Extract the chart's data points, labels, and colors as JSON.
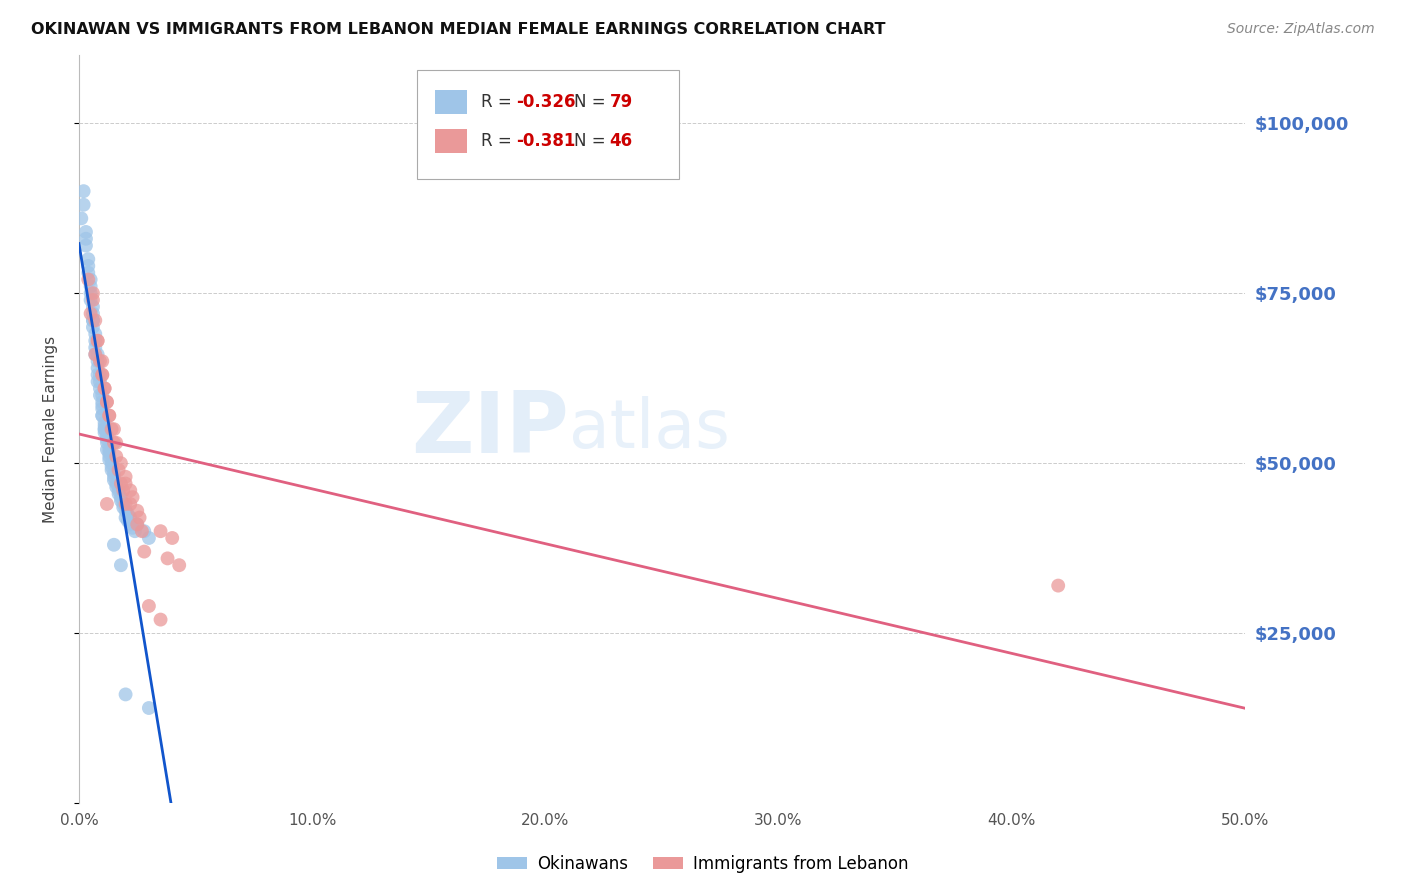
{
  "title": "OKINAWAN VS IMMIGRANTS FROM LEBANON MEDIAN FEMALE EARNINGS CORRELATION CHART",
  "source": "Source: ZipAtlas.com",
  "ylabel": "Median Female Earnings",
  "xlim": [
    0.0,
    0.5
  ],
  "ylim": [
    0,
    110000
  ],
  "yticks": [
    0,
    25000,
    50000,
    75000,
    100000
  ],
  "ytick_labels": [
    "",
    "$25,000",
    "$50,000",
    "$75,000",
    "$100,000"
  ],
  "xtick_labels": [
    "0.0%",
    "10.0%",
    "20.0%",
    "30.0%",
    "40.0%",
    "50.0%"
  ],
  "xticks": [
    0.0,
    0.1,
    0.2,
    0.3,
    0.4,
    0.5
  ],
  "r_okinawan": -0.326,
  "n_okinawan": 79,
  "r_lebanon": -0.381,
  "n_lebanon": 46,
  "blue_color": "#9fc5e8",
  "pink_color": "#ea9999",
  "blue_line_color": "#1155cc",
  "pink_line_color": "#e06080",
  "right_tick_color": "#4472c4",
  "okinawan_x": [
    0.002,
    0.003,
    0.004,
    0.005,
    0.005,
    0.006,
    0.006,
    0.007,
    0.007,
    0.008,
    0.008,
    0.009,
    0.009,
    0.01,
    0.01,
    0.01,
    0.011,
    0.011,
    0.012,
    0.012,
    0.013,
    0.013,
    0.014,
    0.014,
    0.015,
    0.015,
    0.016,
    0.017,
    0.018,
    0.019,
    0.02,
    0.021,
    0.022,
    0.025,
    0.028,
    0.03,
    0.003,
    0.004,
    0.005,
    0.006,
    0.006,
    0.007,
    0.008,
    0.008,
    0.009,
    0.01,
    0.01,
    0.011,
    0.011,
    0.012,
    0.013,
    0.013,
    0.014,
    0.015,
    0.016,
    0.017,
    0.018,
    0.019,
    0.02,
    0.021,
    0.022,
    0.023,
    0.024,
    0.001,
    0.002,
    0.003,
    0.004,
    0.005,
    0.006,
    0.007,
    0.008,
    0.009,
    0.01,
    0.011,
    0.012,
    0.015,
    0.018,
    0.02,
    0.03
  ],
  "okinawan_y": [
    90000,
    84000,
    80000,
    77000,
    74000,
    72000,
    70000,
    68000,
    67000,
    66000,
    64000,
    63000,
    61000,
    60000,
    59000,
    57000,
    56000,
    55000,
    54000,
    53000,
    52000,
    51000,
    50000,
    49000,
    48500,
    48000,
    47000,
    46000,
    45000,
    44000,
    43000,
    42500,
    42000,
    41000,
    40000,
    39000,
    82000,
    78000,
    75000,
    73000,
    71000,
    69000,
    65000,
    63000,
    62000,
    58000,
    57000,
    55500,
    54500,
    53500,
    51500,
    50500,
    49500,
    47500,
    46500,
    45500,
    44500,
    43500,
    42000,
    41500,
    41000,
    40500,
    40000,
    86000,
    88000,
    83000,
    79000,
    76000,
    71000,
    66000,
    62000,
    60000,
    58500,
    55000,
    52000,
    38000,
    35000,
    16000,
    14000
  ],
  "lebanon_x": [
    0.004,
    0.006,
    0.007,
    0.008,
    0.01,
    0.01,
    0.011,
    0.012,
    0.013,
    0.014,
    0.015,
    0.016,
    0.017,
    0.018,
    0.019,
    0.02,
    0.022,
    0.022,
    0.025,
    0.025,
    0.027,
    0.028,
    0.03,
    0.035,
    0.038,
    0.04,
    0.006,
    0.008,
    0.009,
    0.01,
    0.011,
    0.012,
    0.013,
    0.015,
    0.016,
    0.018,
    0.02,
    0.023,
    0.026,
    0.035,
    0.043,
    0.42,
    0.005,
    0.007,
    0.012,
    0.02
  ],
  "lebanon_y": [
    77000,
    74000,
    71000,
    68000,
    65000,
    63000,
    61000,
    59000,
    57000,
    55000,
    53000,
    51000,
    49000,
    47000,
    46000,
    48000,
    46000,
    44000,
    43000,
    41000,
    40000,
    37000,
    29000,
    27000,
    36000,
    39000,
    75000,
    68000,
    65000,
    63000,
    61000,
    59000,
    57000,
    55000,
    53000,
    50000,
    47000,
    45000,
    42000,
    40000,
    35000,
    32000,
    72000,
    66000,
    44000,
    44000
  ]
}
